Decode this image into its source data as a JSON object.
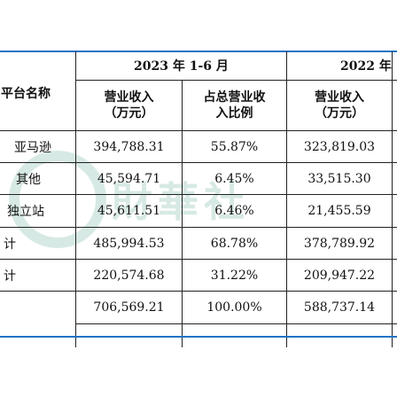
{
  "table": {
    "header": {
      "platform": "平台名称",
      "year2023": "2023 年 1-6 月",
      "year2022": "2022 年",
      "revenue": [
        "营业收入",
        "（万元）"
      ],
      "share": [
        "占总营业收",
        "入比例"
      ],
      "revenue2022": [
        "营业收入",
        "（万元）"
      ]
    },
    "rows": [
      {
        "name": "亚马逊",
        "rev2023": "394,788.31",
        "share": "55.87%",
        "rev2022": "323,819.03"
      },
      {
        "name": "其他",
        "rev2023": "45,594.71",
        "share": "6.45%",
        "rev2022": "33,515.30"
      },
      {
        "name": "独立站",
        "rev2023": "45,611.51",
        "share": "6.46%",
        "rev2022": "21,455.59"
      },
      {
        "name": "计",
        "rev2023": "485,994.53",
        "share": "68.78%",
        "rev2022": "378,789.92"
      },
      {
        "name": "计",
        "rev2023": "220,574.68",
        "share": "31.22%",
        "rev2022": "209,947.22"
      },
      {
        "name": "",
        "rev2023": "706,569.21",
        "share": "100.00%",
        "rev2022": "588,737.14"
      }
    ]
  }
}
